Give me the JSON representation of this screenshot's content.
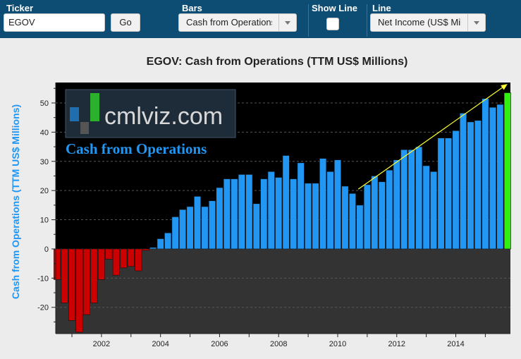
{
  "toolbar": {
    "ticker_label": "Ticker",
    "ticker_value": "EGOV",
    "go_label": "Go",
    "bars_label": "Bars",
    "bars_value": "Cash from Operations",
    "show_line_label": "Show Line",
    "line_label": "Line",
    "line_value": "Net Income (US$ Millions)"
  },
  "watermark": {
    "brand": "cmlviz.com",
    "caption": "Cash from Operations"
  },
  "colors": {
    "positive": "#2196f3",
    "negative": "#cc0000",
    "latest": "#33ee11",
    "trend": "#ffff33",
    "ylabel": "#2196f3"
  },
  "chart_data": {
    "type": "bar",
    "title": "EGOV: Cash from Operations (TTM US$ Millions)",
    "ylabel": "Cash from Operations (TTM US$ Millions)",
    "xlabel": "",
    "ylim": [
      -29,
      57
    ],
    "xlim": [
      2000.45,
      2015.85
    ],
    "yticks": [
      -20,
      -10,
      0,
      10,
      20,
      30,
      40,
      50
    ],
    "xticks": [
      2002,
      2004,
      2006,
      2008,
      2010,
      2012,
      2014
    ],
    "grid": true,
    "start_year": 2000.5,
    "quarter_step": 0.25,
    "values": [
      -10.5,
      -18.5,
      -24.5,
      -28.5,
      -22.5,
      -18.5,
      -10.5,
      -3.5,
      -9,
      -6.5,
      -6,
      -7.5,
      -0.5,
      0.5,
      3.5,
      5.5,
      11,
      13.5,
      14.5,
      18,
      14.5,
      16.5,
      21,
      24,
      24,
      25.5,
      25.5,
      15.5,
      24,
      26.5,
      24.5,
      32,
      24,
      29.5,
      22.5,
      22.5,
      31,
      26.5,
      30.5,
      21.5,
      19,
      15,
      22,
      25,
      23,
      27,
      30.5,
      34,
      34,
      35,
      28.5,
      26.5,
      38,
      38,
      40.5,
      46.5,
      43.5,
      44,
      51.5,
      48.5,
      49.5,
      53.5
    ],
    "trend_line": {
      "x": [
        2010.7,
        2015.75
      ],
      "y": [
        20.5,
        56.5
      ]
    }
  }
}
